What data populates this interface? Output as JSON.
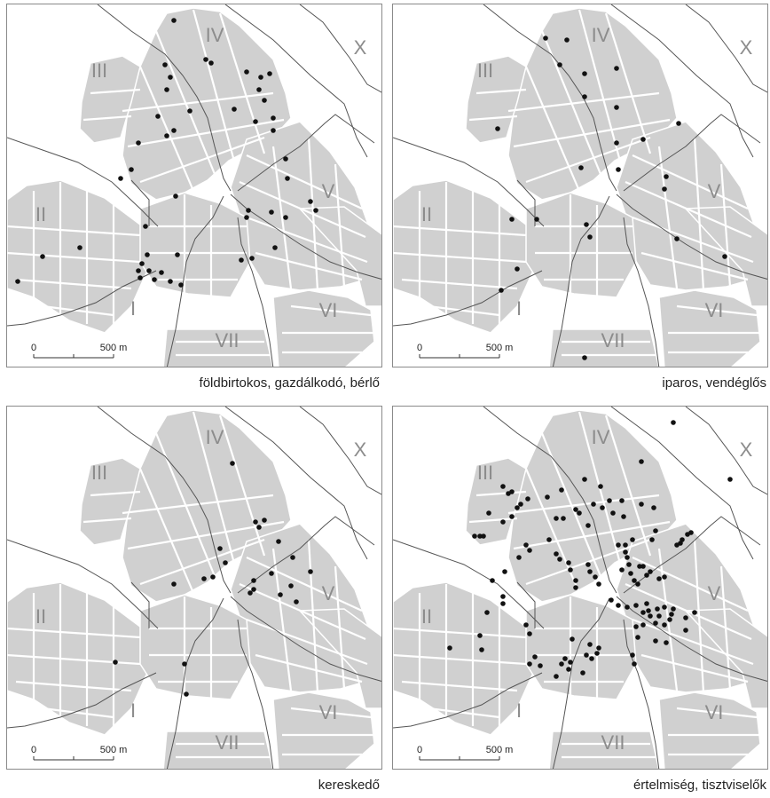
{
  "districts": [
    {
      "label": "IV"
    },
    {
      "label": "X"
    },
    {
      "label": "III"
    },
    {
      "label": "II"
    },
    {
      "label": "V"
    },
    {
      "label": "I"
    },
    {
      "label": "VI"
    },
    {
      "label": "VII"
    }
  ],
  "scale": {
    "zero": "0",
    "distance": "500 m"
  },
  "colors": {
    "blocks": "#d0d0d0",
    "streets": "#ffffff",
    "boundary": "#555555",
    "points": "#111111",
    "frame": "#8a8a8a"
  },
  "panels": [
    {
      "caption": "földbirtokos, gazdálkodó, bérlő",
      "point_count": 48
    },
    {
      "caption": "iparos, vendéglős",
      "point_count": 24
    },
    {
      "caption": "kereskedő",
      "point_count": 22
    },
    {
      "caption": "értelmiség, tisztviselők",
      "point_count": 119
    }
  ]
}
